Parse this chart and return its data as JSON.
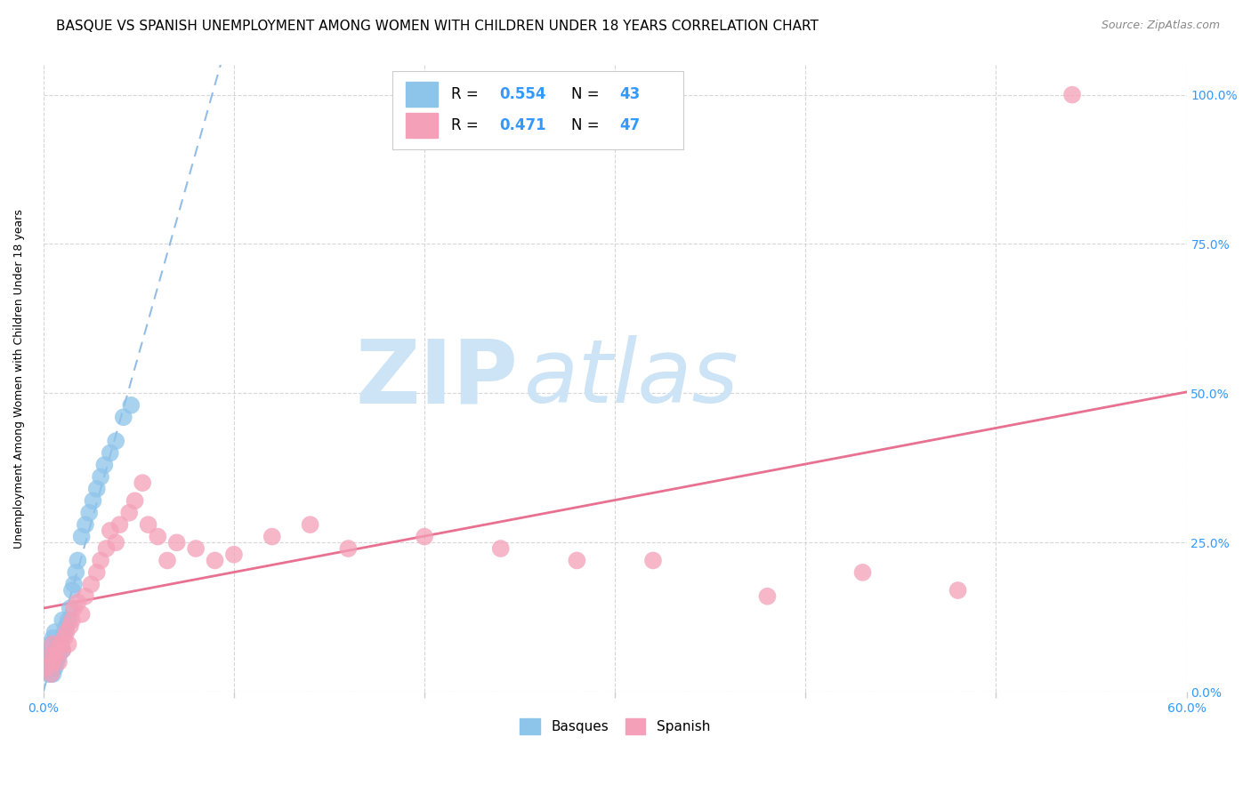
{
  "title": "BASQUE VS SPANISH UNEMPLOYMENT AMONG WOMEN WITH CHILDREN UNDER 18 YEARS CORRELATION CHART",
  "source": "Source: ZipAtlas.com",
  "ylabel": "Unemployment Among Women with Children Under 18 years",
  "ytick_labels": [
    "0.0%",
    "25.0%",
    "50.0%",
    "75.0%",
    "100.0%"
  ],
  "ytick_values": [
    0.0,
    0.25,
    0.5,
    0.75,
    1.0
  ],
  "xtick_values": [
    0.0,
    0.1,
    0.2,
    0.3,
    0.4,
    0.5,
    0.6
  ],
  "legend_basques": "Basques",
  "legend_spanish": "Spanish",
  "R_basques": "0.554",
  "N_basques": "43",
  "R_spanish": "0.471",
  "N_spanish": "47",
  "color_basques": "#8dc4ea",
  "color_spanish": "#f4a0b8",
  "color_basques_line": "#7aade0",
  "color_spanish_line": "#e87090",
  "watermark_zip": "ZIP",
  "watermark_atlas": "atlas",
  "watermark_color": "#cce4f5",
  "basques_x": [
    0.002,
    0.002,
    0.003,
    0.003,
    0.003,
    0.004,
    0.004,
    0.004,
    0.004,
    0.005,
    0.005,
    0.005,
    0.005,
    0.006,
    0.006,
    0.006,
    0.006,
    0.007,
    0.007,
    0.008,
    0.008,
    0.009,
    0.01,
    0.01,
    0.011,
    0.012,
    0.013,
    0.014,
    0.015,
    0.016,
    0.017,
    0.018,
    0.02,
    0.022,
    0.024,
    0.026,
    0.028,
    0.03,
    0.032,
    0.035,
    0.038,
    0.042,
    0.046
  ],
  "basques_y": [
    0.04,
    0.06,
    0.03,
    0.05,
    0.07,
    0.03,
    0.04,
    0.06,
    0.08,
    0.03,
    0.04,
    0.06,
    0.09,
    0.04,
    0.05,
    0.07,
    0.1,
    0.05,
    0.07,
    0.06,
    0.08,
    0.08,
    0.07,
    0.12,
    0.1,
    0.11,
    0.12,
    0.14,
    0.17,
    0.18,
    0.2,
    0.22,
    0.26,
    0.28,
    0.3,
    0.32,
    0.34,
    0.36,
    0.38,
    0.4,
    0.42,
    0.46,
    0.48
  ],
  "spanish_x": [
    0.002,
    0.003,
    0.004,
    0.005,
    0.005,
    0.006,
    0.007,
    0.008,
    0.009,
    0.01,
    0.011,
    0.012,
    0.013,
    0.014,
    0.015,
    0.016,
    0.018,
    0.02,
    0.022,
    0.025,
    0.028,
    0.03,
    0.033,
    0.035,
    0.038,
    0.04,
    0.045,
    0.048,
    0.052,
    0.055,
    0.06,
    0.065,
    0.07,
    0.08,
    0.09,
    0.1,
    0.12,
    0.14,
    0.16,
    0.2,
    0.24,
    0.28,
    0.32,
    0.38,
    0.43,
    0.48,
    0.54
  ],
  "spanish_y": [
    0.04,
    0.06,
    0.03,
    0.05,
    0.08,
    0.06,
    0.07,
    0.05,
    0.08,
    0.07,
    0.09,
    0.1,
    0.08,
    0.11,
    0.12,
    0.14,
    0.15,
    0.13,
    0.16,
    0.18,
    0.2,
    0.22,
    0.24,
    0.27,
    0.25,
    0.28,
    0.3,
    0.32,
    0.35,
    0.28,
    0.26,
    0.22,
    0.25,
    0.24,
    0.22,
    0.23,
    0.26,
    0.28,
    0.24,
    0.26,
    0.24,
    0.22,
    0.22,
    0.16,
    0.2,
    0.17,
    1.0
  ],
  "xlim": [
    0.0,
    0.6
  ],
  "ylim": [
    0.0,
    1.05
  ],
  "title_fontsize": 11,
  "axis_label_fontsize": 9,
  "tick_fontsize": 10,
  "legend_fontsize": 11,
  "dot_size": 200
}
